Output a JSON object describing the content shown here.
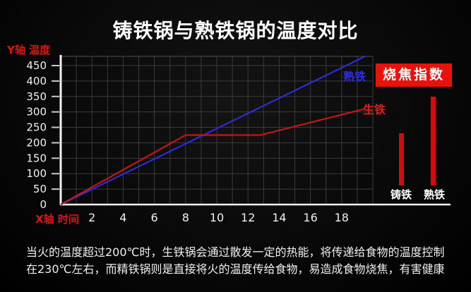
{
  "title": "铸铁锅与熟铁锅的温度对比",
  "chart_data": {
    "type": "line",
    "title": "铸铁锅与熟铁锅的温度对比",
    "xlabel": "X轴 时间",
    "ylabel": "Y轴 温度",
    "xlim": [
      0,
      20
    ],
    "ylim": [
      0,
      480
    ],
    "x_ticks": [
      2,
      4,
      6,
      8,
      10,
      12,
      14,
      16,
      18
    ],
    "y_ticks": [
      0,
      50,
      100,
      150,
      200,
      250,
      300,
      350,
      400,
      450
    ],
    "grid": true,
    "series": [
      {
        "name": "熟铁",
        "color": "#2a2dd4",
        "points": [
          [
            0,
            0
          ],
          [
            19.5,
            480
          ]
        ]
      },
      {
        "name": "生铁",
        "color": "#c41713",
        "points": [
          [
            0,
            0
          ],
          [
            8,
            225
          ],
          [
            12.8,
            225
          ],
          [
            19.5,
            310
          ]
        ]
      }
    ]
  },
  "burn_index": {
    "title": "烧焦指数",
    "bars": [
      {
        "label": "铸铁",
        "value": 74
      },
      {
        "label": "熟铁",
        "value": 126
      }
    ]
  },
  "colors": {
    "axis_caption_red": "#e01212",
    "burn_box_bg": "#e8120d",
    "bar_red": "#cf0d0d",
    "grid_gray": "#3b3b3b",
    "axis_white": "#f2f2f2"
  },
  "footer": {
    "line1": "当火的温度超过200℃时，生铁锅会通过散发一定的热能，将传递给食物的温度控制",
    "line2": "在230℃左右，而精铁锅则是直接将火的温度传给食物，易造成食物烧焦，有害健康"
  }
}
